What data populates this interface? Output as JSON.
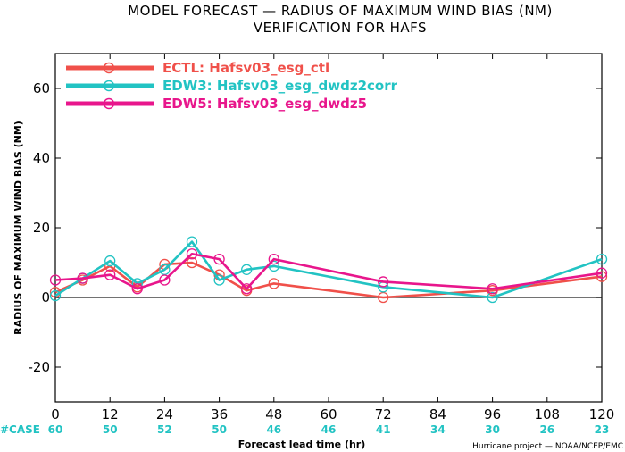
{
  "chart_data": {
    "type": "line",
    "title": "MODEL FORECAST — RADIUS OF MAXIMUM WIND BIAS (NM)",
    "subtitle": "VERIFICATION FOR HAFS",
    "xlabel": "Forecast lead time (hr)",
    "ylabel": "RADIUS OF MAXIMUM WIND BIAS (NM)",
    "xlim": [
      0,
      120
    ],
    "ylim": [
      -30,
      70
    ],
    "xticks": [
      0,
      12,
      24,
      36,
      48,
      60,
      72,
      84,
      96,
      108,
      120
    ],
    "yticks": [
      -20,
      0,
      20,
      40,
      60
    ],
    "zero_line": true,
    "legend_position": "top-left",
    "credit": "Hurricane project — NOAA/NCEP/EMC",
    "case_label": "#CASE",
    "case_x": [
      0,
      12,
      24,
      36,
      48,
      60,
      72,
      84,
      96,
      108,
      120
    ],
    "case_counts": [
      "60",
      "50",
      "52",
      "50",
      "46",
      "46",
      "41",
      "34",
      "30",
      "26",
      "23"
    ],
    "series": [
      {
        "name": "ECTL: Hafsv03_esg_ctl",
        "color": "#f0504a",
        "x": [
          0,
          6,
          12,
          18,
          24,
          30,
          36,
          42,
          48,
          72,
          96,
          120
        ],
        "y": [
          1.5,
          5,
          9,
          3,
          9.5,
          10,
          6.5,
          2,
          4,
          0,
          2,
          6
        ]
      },
      {
        "name": "EDW3: Hafsv03_esg_dwdz2corr",
        "color": "#22c3c3",
        "x": [
          0,
          6,
          12,
          18,
          24,
          30,
          36,
          42,
          48,
          72,
          96,
          120
        ],
        "y": [
          0.5,
          5.5,
          10.5,
          4,
          8,
          16,
          5,
          8,
          9,
          3,
          0,
          11
        ]
      },
      {
        "name": "EDW5: Hafsv03_esg_dwdz5",
        "color": "#e8168c",
        "x": [
          0,
          6,
          12,
          18,
          24,
          30,
          36,
          42,
          48,
          72,
          96,
          120
        ],
        "y": [
          5,
          5.5,
          6.5,
          2.5,
          5,
          12.5,
          11,
          2.5,
          11,
          4.5,
          2.5,
          7
        ]
      }
    ]
  }
}
